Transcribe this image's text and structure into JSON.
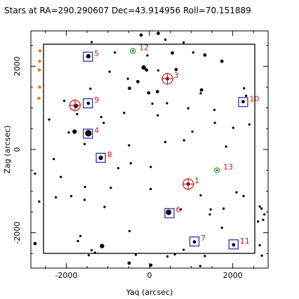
{
  "chart_data": {
    "type": "scatter",
    "title": "Stars at RA=290.290607 Dec=43.914956 Roll=70.151889",
    "xlabel": "Yaq (arcsec)",
    "ylabel": "Zag (arcsec)",
    "xlim": [
      -2850,
      2850
    ],
    "ylim": [
      -2850,
      2850
    ],
    "xticks": [
      -2000,
      0,
      2000
    ],
    "yticks": [
      -2000,
      0,
      2000
    ],
    "tick_labels_x": [
      "-2000",
      "0",
      "2000"
    ],
    "tick_labels_y": [
      "-2000",
      "0",
      "2000"
    ],
    "inner_box": {
      "x": [
        -2600,
        2550
      ],
      "y": [
        -2550,
        2520
      ]
    },
    "colors": {
      "frame": "#000000",
      "stars": "#000000",
      "guide": "#2020b0",
      "acq": "#d01818",
      "fid": "#18a018",
      "bad": "#f08018"
    },
    "guide_stars": [
      {
        "id": "5",
        "x": -1480,
        "y": 2230
      },
      {
        "id": "9",
        "x": -1480,
        "y": 1110
      },
      {
        "id": "4",
        "x": -1480,
        "y": 380
      },
      {
        "id": "8",
        "x": -1170,
        "y": -200
      },
      {
        "id": "6",
        "x": 480,
        "y": -1530
      },
      {
        "id": "7",
        "x": 1080,
        "y": -2210
      },
      {
        "id": "11",
        "x": 2020,
        "y": -2280
      },
      {
        "id": "10",
        "x": 2250,
        "y": 1140
      }
    ],
    "acq_stars": [
      {
        "id": "3",
        "x": 430,
        "y": 1700
      },
      {
        "id": "1",
        "x": 930,
        "y": -830
      }
    ],
    "fid_lights": [
      {
        "id": "12",
        "x": -400,
        "y": 2370
      },
      {
        "id": "13",
        "x": 1620,
        "y": -500
      }
    ],
    "unlabeled_big_circle": {
      "x": -1790,
      "y": 1060
    },
    "bad_stars": [
      {
        "x": -2630,
        "y": 2370
      },
      {
        "x": -2640,
        "y": 2120
      },
      {
        "x": -2650,
        "y": 1910
      },
      {
        "x": -2640,
        "y": 1500
      },
      {
        "x": -2660,
        "y": 1230
      }
    ],
    "field_stars": [
      {
        "x": -1470,
        "y": 2240,
        "s": 3
      },
      {
        "x": -1470,
        "y": 1110,
        "s": 2
      },
      {
        "x": -1470,
        "y": 390,
        "s": 5
      },
      {
        "x": -1170,
        "y": -200,
        "s": 3
      },
      {
        "x": 460,
        "y": -1510,
        "s": 4
      },
      {
        "x": 1080,
        "y": -2220,
        "s": 2
      },
      {
        "x": 2020,
        "y": -2290,
        "s": 2
      },
      {
        "x": 2250,
        "y": 1150,
        "s": 2
      },
      {
        "x": 430,
        "y": 1700,
        "s": 2
      },
      {
        "x": 930,
        "y": -830,
        "s": 2
      },
      {
        "x": -1770,
        "y": 1050,
        "s": 3
      },
      {
        "x": -200,
        "y": 2750,
        "s": 2
      },
      {
        "x": 210,
        "y": 2790,
        "s": 2
      },
      {
        "x": 380,
        "y": 2640,
        "s": 1
      },
      {
        "x": 550,
        "y": 2320,
        "s": 2
      },
      {
        "x": 820,
        "y": 2570,
        "s": 1
      },
      {
        "x": 1050,
        "y": 2330,
        "s": 1
      },
      {
        "x": 1330,
        "y": 2270,
        "s": 2
      },
      {
        "x": 1740,
        "y": 2120,
        "s": 2
      },
      {
        "x": -830,
        "y": 2330,
        "s": 1
      },
      {
        "x": -1390,
        "y": 2580,
        "s": 1
      },
      {
        "x": -50,
        "y": 2260,
        "s": 1
      },
      {
        "x": -140,
        "y": 1970,
        "s": 3
      },
      {
        "x": -70,
        "y": 1910,
        "s": 2
      },
      {
        "x": 210,
        "y": 1900,
        "s": 1
      },
      {
        "x": 640,
        "y": 1920,
        "s": 2
      },
      {
        "x": -960,
        "y": 1870,
        "s": 1
      },
      {
        "x": -520,
        "y": 1700,
        "s": 1
      },
      {
        "x": -280,
        "y": 1630,
        "s": 2
      },
      {
        "x": 190,
        "y": 1390,
        "s": 2
      },
      {
        "x": -20,
        "y": 1360,
        "s": 2
      },
      {
        "x": 1250,
        "y": 1430,
        "s": 2
      },
      {
        "x": 1230,
        "y": 1350,
        "s": 1
      },
      {
        "x": 2320,
        "y": 1290,
        "s": 1
      },
      {
        "x": 2270,
        "y": 1470,
        "s": 1
      },
      {
        "x": -480,
        "y": 1470,
        "s": 2
      },
      {
        "x": -1420,
        "y": 1460,
        "s": 1
      },
      {
        "x": 70,
        "y": 1100,
        "s": 1
      },
      {
        "x": 420,
        "y": 1110,
        "s": 1
      },
      {
        "x": 930,
        "y": 990,
        "s": 1
      },
      {
        "x": 1560,
        "y": 950,
        "s": 1
      },
      {
        "x": -2050,
        "y": 1170,
        "s": 1
      },
      {
        "x": -2410,
        "y": 720,
        "s": 1
      },
      {
        "x": -1800,
        "y": 430,
        "s": 3
      },
      {
        "x": -1940,
        "y": 410,
        "s": 1
      },
      {
        "x": -1740,
        "y": 850,
        "s": 1
      },
      {
        "x": -1100,
        "y": 640,
        "s": 1
      },
      {
        "x": -1160,
        "y": 780,
        "s": 1
      },
      {
        "x": -610,
        "y": 880,
        "s": 1
      },
      {
        "x": 1570,
        "y": 640,
        "s": 1
      },
      {
        "x": 2010,
        "y": 520,
        "s": 1
      },
      {
        "x": 2400,
        "y": 600,
        "s": 1
      },
      {
        "x": 1030,
        "y": 430,
        "s": 1
      },
      {
        "x": 830,
        "y": 220,
        "s": 1
      },
      {
        "x": 380,
        "y": 180,
        "s": 1
      },
      {
        "x": -1560,
        "y": 130,
        "s": 1
      },
      {
        "x": -490,
        "y": 100,
        "s": 1
      },
      {
        "x": 1840,
        "y": 70,
        "s": 1
      },
      {
        "x": -2300,
        "y": -230,
        "s": 1
      },
      {
        "x": -450,
        "y": -330,
        "s": 1
      },
      {
        "x": 30,
        "y": -420,
        "s": 1
      },
      {
        "x": -2750,
        "y": -580,
        "s": 1
      },
      {
        "x": -2130,
        "y": -660,
        "s": 1
      },
      {
        "x": -1550,
        "y": -900,
        "s": 1
      },
      {
        "x": -930,
        "y": -920,
        "s": 1
      },
      {
        "x": -1880,
        "y": -1120,
        "s": 1
      },
      {
        "x": -2250,
        "y": -1150,
        "s": 1
      },
      {
        "x": -2650,
        "y": -1250,
        "s": 1
      },
      {
        "x": -1080,
        "y": -1380,
        "s": 1
      },
      {
        "x": 30,
        "y": -950,
        "s": 1
      },
      {
        "x": 1230,
        "y": -1100,
        "s": 1
      },
      {
        "x": 2260,
        "y": -1120,
        "s": 1
      },
      {
        "x": 2090,
        "y": -1030,
        "s": 1
      },
      {
        "x": 1470,
        "y": -1440,
        "s": 1
      },
      {
        "x": 750,
        "y": -1440,
        "s": 1
      },
      {
        "x": 1450,
        "y": -1560,
        "s": 1
      },
      {
        "x": 1780,
        "y": -1420,
        "s": 1
      },
      {
        "x": 2650,
        "y": -1370,
        "s": 1
      },
      {
        "x": 2690,
        "y": -1420,
        "s": 1
      },
      {
        "x": 2610,
        "y": -1730,
        "s": 1
      },
      {
        "x": 2760,
        "y": -1560,
        "s": 1
      },
      {
        "x": 2730,
        "y": -1690,
        "s": 1
      },
      {
        "x": -480,
        "y": -1960,
        "s": 1
      },
      {
        "x": -1660,
        "y": -2080,
        "s": 1
      },
      {
        "x": -1720,
        "y": -2200,
        "s": 1
      },
      {
        "x": -1140,
        "y": -2320,
        "s": 3
      },
      {
        "x": -1390,
        "y": -2420,
        "s": 1
      },
      {
        "x": -1310,
        "y": -2480,
        "s": 1
      },
      {
        "x": -1460,
        "y": -2540,
        "s": 1
      },
      {
        "x": -2750,
        "y": -2260,
        "s": 2
      },
      {
        "x": -490,
        "y": -2730,
        "s": 2
      },
      {
        "x": 30,
        "y": -2780,
        "s": 2
      },
      {
        "x": -330,
        "y": -2530,
        "s": 1
      },
      {
        "x": 610,
        "y": -2520,
        "s": 1
      },
      {
        "x": 430,
        "y": -2570,
        "s": 1
      },
      {
        "x": 1220,
        "y": -2800,
        "s": 1
      },
      {
        "x": 1330,
        "y": -2560,
        "s": 1
      },
      {
        "x": 820,
        "y": -2410,
        "s": 1
      },
      {
        "x": 1740,
        "y": -1880,
        "s": 1
      },
      {
        "x": 2650,
        "y": -2300,
        "s": 1
      },
      {
        "x": 2700,
        "y": -2550,
        "s": 1
      },
      {
        "x": -750,
        "y": -450,
        "s": 1
      },
      {
        "x": -1560,
        "y": -1210,
        "s": 1
      },
      {
        "x": 200,
        "y": 820,
        "s": 1
      }
    ]
  }
}
